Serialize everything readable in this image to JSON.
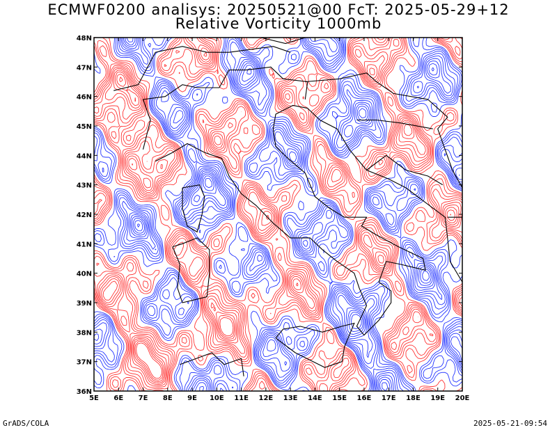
{
  "title_line1": "ECMWF0200 analisys: 20250521@00 FcT: 2025-05-29+12",
  "title_line2": "Relative Vorticity 1000mb",
  "footer_left": "GrADS/COLA",
  "footer_right": "2025-05-21-09:54",
  "map": {
    "lon_labels": [
      "5E",
      "6E",
      "7E",
      "8E",
      "9E",
      "10E",
      "11E",
      "12E",
      "13E",
      "14E",
      "15E",
      "16E",
      "17E",
      "18E",
      "19E",
      "20E"
    ],
    "lat_labels": [
      "36N",
      "37N",
      "38N",
      "39N",
      "40N",
      "41N",
      "42N",
      "43N",
      "44N",
      "45N",
      "46N",
      "47N",
      "48N"
    ],
    "lon_range": [
      5,
      20
    ],
    "lat_range": [
      36,
      48
    ],
    "colors": {
      "positive_vorticity": "#ff3333",
      "negative_vorticity": "#2233ff",
      "coastline": "#000000",
      "frame": "#000000"
    }
  }
}
